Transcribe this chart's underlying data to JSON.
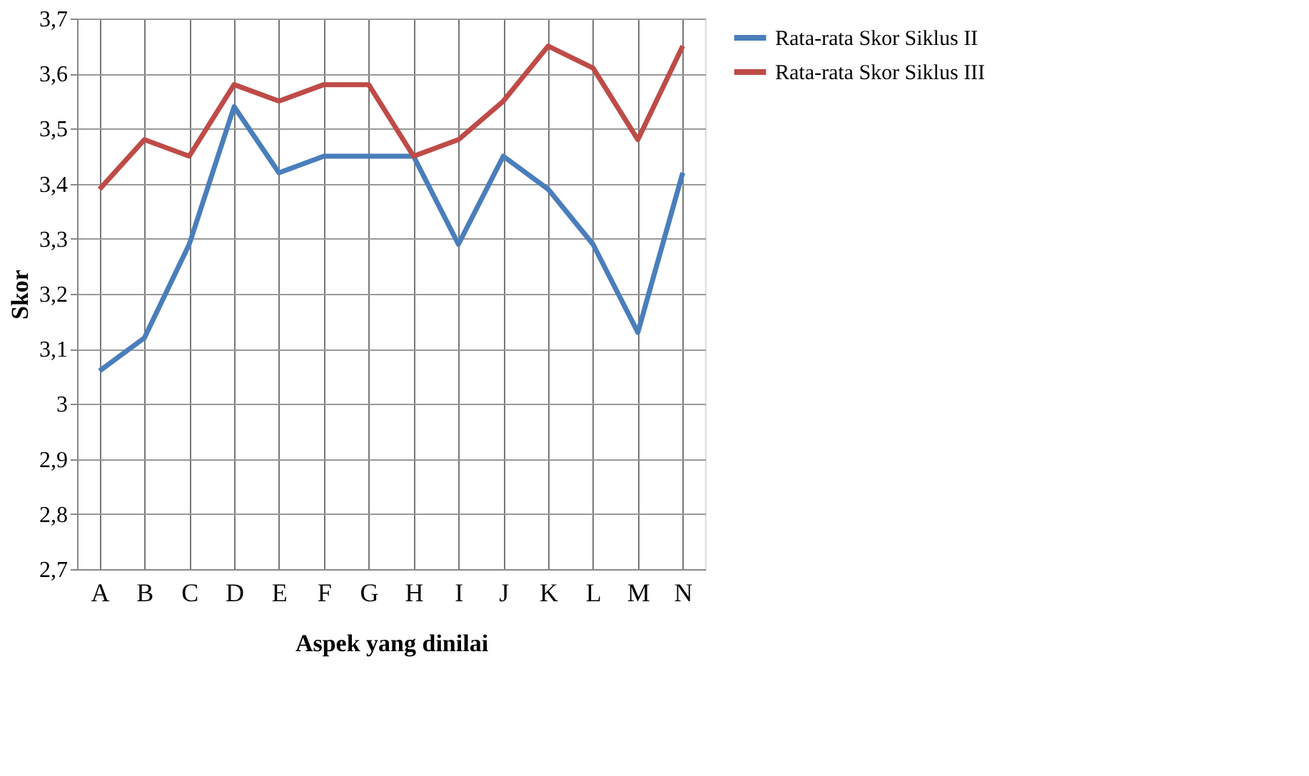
{
  "chart_data": {
    "type": "line",
    "xlabel": "Aspek yang dinilai",
    "ylabel": "Skor",
    "categories": [
      "A",
      "B",
      "C",
      "D",
      "E",
      "F",
      "G",
      "H",
      "I",
      "J",
      "K",
      "L",
      "M",
      "N"
    ],
    "series": [
      {
        "name": "Rata-rata Skor Siklus II",
        "color": "#4a7ebb",
        "values": [
          3.06,
          3.12,
          3.29,
          3.54,
          3.42,
          3.45,
          3.45,
          3.45,
          3.29,
          3.45,
          3.39,
          3.29,
          3.13,
          3.42
        ]
      },
      {
        "name": "Rata-rata Skor Siklus III",
        "color": "#be4b48",
        "values": [
          3.39,
          3.48,
          3.45,
          3.58,
          3.55,
          3.58,
          3.58,
          3.45,
          3.48,
          3.55,
          3.65,
          3.61,
          3.48,
          3.65
        ]
      }
    ],
    "ylim": [
      2.7,
      3.7
    ],
    "yticks": [
      {
        "value": 2.7,
        "label": "2,7"
      },
      {
        "value": 2.8,
        "label": "2,8"
      },
      {
        "value": 2.9,
        "label": "2,9"
      },
      {
        "value": 3,
        "label": "3"
      },
      {
        "value": 3.1,
        "label": "3,1"
      },
      {
        "value": 3.2,
        "label": "3,2"
      },
      {
        "value": 3.3,
        "label": "3,3"
      },
      {
        "value": 3.4,
        "label": "3,4"
      },
      {
        "value": 3.5,
        "label": "3,5"
      },
      {
        "value": 3.6,
        "label": "3,6"
      },
      {
        "value": 3.7,
        "label": "3,7"
      }
    ],
    "grid": true,
    "legend": "right",
    "marker": "none",
    "line_style": "solid"
  }
}
